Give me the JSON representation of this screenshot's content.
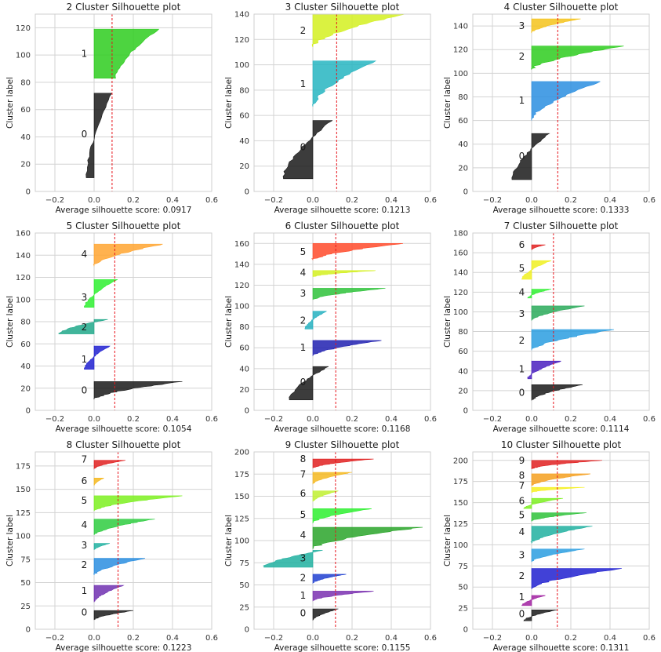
{
  "chart_data": [
    {
      "type": "area",
      "title": "2 Cluster Silhouette plot",
      "xlabel": "Average silhouette score: 0.0917",
      "ylabel": "Cluster label",
      "xlim": [
        -0.3,
        0.6
      ],
      "ylim": [
        0,
        130
      ],
      "xticks": [
        "−0.2",
        "0.0",
        "0.2",
        "0.4",
        "0.6"
      ],
      "xtick_values": [
        -0.2,
        0.0,
        0.2,
        0.4,
        0.6
      ],
      "yticks": [
        "0",
        "20",
        "40",
        "60",
        "80",
        "100",
        "120"
      ],
      "ytick_values": [
        0,
        20,
        40,
        60,
        80,
        100,
        120
      ],
      "avg_score": 0.0917,
      "grid": true,
      "clusters": [
        {
          "label": "0",
          "ystart": 10,
          "yend": 72,
          "min": -0.04,
          "max": 0.09,
          "label_y": 42,
          "color": "#1a1a1a"
        },
        {
          "label": "1",
          "ystart": 83,
          "yend": 119,
          "min": 0.11,
          "max": 0.33,
          "label_y": 101,
          "color": "#2ecc1f"
        }
      ]
    },
    {
      "type": "area",
      "title": "3 Cluster Silhouette plot",
      "xlabel": "Average silhouette score: 0.1213",
      "ylabel": "Cluster label",
      "xlim": [
        -0.3,
        0.6
      ],
      "ylim": [
        0,
        140
      ],
      "xticks": [
        "−0.2",
        "0.0",
        "0.2",
        "0.4",
        "0.6"
      ],
      "xtick_values": [
        -0.2,
        0.0,
        0.2,
        0.4,
        0.6
      ],
      "yticks": [
        "0",
        "20",
        "40",
        "60",
        "80",
        "100",
        "120",
        "140"
      ],
      "ytick_values": [
        0,
        20,
        40,
        60,
        80,
        100,
        120,
        140
      ],
      "avg_score": 0.1213,
      "grid": true,
      "clusters": [
        {
          "label": "0",
          "ystart": 10,
          "yend": 56,
          "min": -0.15,
          "max": 0.1,
          "label_y": 35,
          "color": "#1a1a1a"
        },
        {
          "label": "1",
          "ystart": 67,
          "yend": 103,
          "min": 0.0,
          "max": 0.32,
          "label_y": 85,
          "color": "#26b5c1"
        },
        {
          "label": "2",
          "ystart": 114,
          "yend": 140,
          "min": 0.0,
          "max": 0.47,
          "label_y": 127,
          "color": "#d4f020"
        }
      ]
    },
    {
      "type": "area",
      "title": "4 Cluster Silhouette plot",
      "xlabel": "Average silhouette score: 0.1333",
      "ylabel": "Cluster label",
      "xlim": [
        -0.3,
        0.6
      ],
      "ylim": [
        0,
        150
      ],
      "xticks": [
        "−0.2",
        "0.0",
        "0.2",
        "0.4",
        "0.6"
      ],
      "xtick_values": [
        -0.2,
        0.0,
        0.2,
        0.4,
        0.6
      ],
      "yticks": [
        "0",
        "20",
        "40",
        "60",
        "80",
        "100",
        "120",
        "140"
      ],
      "ytick_values": [
        0,
        20,
        40,
        60,
        80,
        100,
        120,
        140
      ],
      "avg_score": 0.1333,
      "grid": true,
      "clusters": [
        {
          "label": "0",
          "ystart": 10,
          "yend": 49,
          "min": -0.1,
          "max": 0.09,
          "label_y": 30,
          "color": "#1a1a1a"
        },
        {
          "label": "1",
          "ystart": 60,
          "yend": 93,
          "min": 0.0,
          "max": 0.35,
          "label_y": 77,
          "color": "#2a8ee0"
        },
        {
          "label": "2",
          "ystart": 103,
          "yend": 123,
          "min": 0.0,
          "max": 0.47,
          "label_y": 114,
          "color": "#2ecc1f"
        },
        {
          "label": "3",
          "ystart": 134,
          "yend": 146,
          "min": 0.0,
          "max": 0.25,
          "label_y": 140,
          "color": "#f5c31b"
        }
      ]
    },
    {
      "type": "area",
      "title": "5 Cluster Silhouette plot",
      "xlabel": "Average silhouette score: 0.1054",
      "ylabel": "Cluster label",
      "xlim": [
        -0.3,
        0.6
      ],
      "ylim": [
        0,
        160
      ],
      "xticks": [
        "−0.2",
        "0.0",
        "0.2",
        "0.4",
        "0.6"
      ],
      "xtick_values": [
        -0.2,
        0.0,
        0.2,
        0.4,
        0.6
      ],
      "yticks": [
        "0",
        "20",
        "40",
        "60",
        "80",
        "100",
        "120",
        "140",
        "160"
      ],
      "ytick_values": [
        0,
        20,
        40,
        60,
        80,
        100,
        120,
        140,
        160
      ],
      "avg_score": 0.1054,
      "grid": true,
      "clusters": [
        {
          "label": "0",
          "ystart": 10,
          "yend": 26,
          "min": 0.0,
          "max": 0.45,
          "label_y": 18,
          "color": "#1a1a1a"
        },
        {
          "label": "1",
          "ystart": 37,
          "yend": 58,
          "min": -0.05,
          "max": 0.08,
          "label_y": 46,
          "color": "#2020d0"
        },
        {
          "label": "2",
          "ystart": 69,
          "yend": 82,
          "min": -0.18,
          "max": 0.07,
          "label_y": 75,
          "color": "#20a88a"
        },
        {
          "label": "3",
          "ystart": 93,
          "yend": 118,
          "min": -0.05,
          "max": 0.12,
          "label_y": 102,
          "color": "#2ef030"
        },
        {
          "label": "4",
          "ystart": 130,
          "yend": 150,
          "min": 0.0,
          "max": 0.35,
          "label_y": 141,
          "color": "#ffa530"
        }
      ]
    },
    {
      "type": "area",
      "title": "6 Cluster Silhouette plot",
      "xlabel": "Average silhouette score: 0.1168",
      "ylabel": "Cluster label",
      "xlim": [
        -0.3,
        0.6
      ],
      "ylim": [
        0,
        170
      ],
      "xticks": [
        "−0.2",
        "0.0",
        "0.2",
        "0.4",
        "0.6"
      ],
      "xtick_values": [
        -0.2,
        0.0,
        0.2,
        0.4,
        0.6
      ],
      "yticks": [
        "0",
        "20",
        "40",
        "60",
        "80",
        "100",
        "120",
        "140",
        "160"
      ],
      "ytick_values": [
        0,
        20,
        40,
        60,
        80,
        100,
        120,
        140,
        160
      ],
      "avg_score": 0.1168,
      "grid": true,
      "clusters": [
        {
          "label": "0",
          "ystart": 10,
          "yend": 42,
          "min": -0.12,
          "max": 0.08,
          "label_y": 27,
          "color": "#1a1a1a"
        },
        {
          "label": "1",
          "ystart": 52,
          "yend": 67,
          "min": 0.0,
          "max": 0.35,
          "label_y": 60,
          "color": "#2020b0"
        },
        {
          "label": "2",
          "ystart": 78,
          "yend": 95,
          "min": -0.04,
          "max": 0.07,
          "label_y": 86,
          "color": "#25b0c0"
        },
        {
          "label": "3",
          "ystart": 106,
          "yend": 117,
          "min": 0.0,
          "max": 0.37,
          "label_y": 112,
          "color": "#2ec23a"
        },
        {
          "label": "4",
          "ystart": 128,
          "yend": 134,
          "min": 0.0,
          "max": 0.32,
          "label_y": 132,
          "color": "#d4f020"
        },
        {
          "label": "5",
          "ystart": 144,
          "yend": 160,
          "min": 0.0,
          "max": 0.46,
          "label_y": 152,
          "color": "#ff4a2a"
        }
      ]
    },
    {
      "type": "area",
      "title": "7 Cluster Silhouette plot",
      "xlabel": "Average silhouette score: 0.1114",
      "ylabel": "Cluster label",
      "xlim": [
        -0.3,
        0.6
      ],
      "ylim": [
        0,
        180
      ],
      "xticks": [
        "−0.2",
        "0.0",
        "0.2",
        "0.4",
        "0.6"
      ],
      "xtick_values": [
        -0.2,
        0.0,
        0.2,
        0.4,
        0.6
      ],
      "yticks": [
        "0",
        "20",
        "40",
        "60",
        "80",
        "100",
        "120",
        "140",
        "160",
        "180"
      ],
      "ytick_values": [
        0,
        20,
        40,
        60,
        80,
        100,
        120,
        140,
        160,
        180
      ],
      "avg_score": 0.1114,
      "grid": true,
      "clusters": [
        {
          "label": "0",
          "ystart": 10,
          "yend": 26,
          "min": 0.0,
          "max": 0.26,
          "label_y": 18,
          "color": "#1a1a1a"
        },
        {
          "label": "1",
          "ystart": 32,
          "yend": 50,
          "min": -0.02,
          "max": 0.15,
          "label_y": 42,
          "color": "#4a20c0"
        },
        {
          "label": "2",
          "ystart": 61,
          "yend": 82,
          "min": 0.0,
          "max": 0.42,
          "label_y": 71,
          "color": "#2a9ee0"
        },
        {
          "label": "3",
          "ystart": 91,
          "yend": 106,
          "min": 0.0,
          "max": 0.27,
          "label_y": 98,
          "color": "#2aaa5a"
        },
        {
          "label": "4",
          "ystart": 114,
          "yend": 123,
          "min": -0.02,
          "max": 0.1,
          "label_y": 120,
          "color": "#2ef030"
        },
        {
          "label": "5",
          "ystart": 133,
          "yend": 152,
          "min": -0.05,
          "max": 0.1,
          "label_y": 144,
          "color": "#f0f020"
        },
        {
          "label": "6",
          "ystart": 163,
          "yend": 168,
          "min": 0.0,
          "max": 0.07,
          "label_y": 168,
          "color": "#e02020"
        }
      ]
    },
    {
      "type": "area",
      "title": "8 Cluster Silhouette plot",
      "xlabel": "Average silhouette score: 0.1223",
      "ylabel": "Cluster label",
      "xlim": [
        -0.3,
        0.6
      ],
      "ylim": [
        0,
        190
      ],
      "xticks": [
        "−0.2",
        "0.0",
        "0.2",
        "0.4",
        "0.6"
      ],
      "xtick_values": [
        -0.2,
        0.0,
        0.2,
        0.4,
        0.6
      ],
      "yticks": [
        "0",
        "25",
        "50",
        "75",
        "100",
        "125",
        "150",
        "175"
      ],
      "ytick_values": [
        0,
        25,
        50,
        75,
        100,
        125,
        150,
        175
      ],
      "avg_score": 0.1223,
      "grid": true,
      "clusters": [
        {
          "label": "0",
          "ystart": 10,
          "yend": 20,
          "min": 0.0,
          "max": 0.2,
          "label_y": 18,
          "color": "#1a1a1a"
        },
        {
          "label": "1",
          "ystart": 29,
          "yend": 47,
          "min": 0.0,
          "max": 0.15,
          "label_y": 41,
          "color": "#7030b0"
        },
        {
          "label": "2",
          "ystart": 58,
          "yend": 76,
          "min": 0.0,
          "max": 0.26,
          "label_y": 69,
          "color": "#2a8ee0"
        },
        {
          "label": "3",
          "ystart": 85,
          "yend": 92,
          "min": 0.0,
          "max": 0.08,
          "label_y": 90,
          "color": "#20b0a0"
        },
        {
          "label": "4",
          "ystart": 101,
          "yend": 118,
          "min": 0.0,
          "max": 0.31,
          "label_y": 112,
          "color": "#2ecc40"
        },
        {
          "label": "5",
          "ystart": 127,
          "yend": 143,
          "min": 0.0,
          "max": 0.45,
          "label_y": 138,
          "color": "#7cf020"
        },
        {
          "label": "6",
          "ystart": 154,
          "yend": 162,
          "min": 0.0,
          "max": 0.05,
          "label_y": 159,
          "color": "#f5b820"
        },
        {
          "label": "7",
          "ystart": 172,
          "yend": 181,
          "min": 0.0,
          "max": 0.16,
          "label_y": 182,
          "color": "#e02020"
        }
      ]
    },
    {
      "type": "area",
      "title": "9 Cluster Silhouette plot",
      "xlabel": "Average silhouette score: 0.1155",
      "ylabel": "Cluster label",
      "xlim": [
        -0.3,
        0.6
      ],
      "ylim": [
        0,
        200
      ],
      "xticks": [
        "−0.2",
        "0.0",
        "0.2",
        "0.4",
        "0.6"
      ],
      "xtick_values": [
        -0.2,
        0.0,
        0.2,
        0.4,
        0.6
      ],
      "yticks": [
        "0",
        "25",
        "50",
        "75",
        "100",
        "125",
        "150",
        "175",
        "200"
      ],
      "ytick_values": [
        0,
        25,
        50,
        75,
        100,
        125,
        150,
        175,
        200
      ],
      "avg_score": 0.1155,
      "grid": true,
      "clusters": [
        {
          "label": "0",
          "ystart": 10,
          "yend": 23,
          "min": 0.0,
          "max": 0.13,
          "label_y": 18,
          "color": "#1a1a1a"
        },
        {
          "label": "1",
          "ystart": 32,
          "yend": 43,
          "min": 0.0,
          "max": 0.31,
          "label_y": 38,
          "color": "#7a30b0"
        },
        {
          "label": "2",
          "ystart": 52,
          "yend": 62,
          "min": 0.0,
          "max": 0.17,
          "label_y": 58,
          "color": "#2040d0"
        },
        {
          "label": "3",
          "ystart": 70,
          "yend": 89,
          "min": -0.25,
          "max": 0.05,
          "label_y": 80,
          "color": "#20b0a0"
        },
        {
          "label": "4",
          "ystart": 91,
          "yend": 115,
          "min": 0.0,
          "max": 0.56,
          "label_y": 106,
          "color": "#2aa52a"
        },
        {
          "label": "5",
          "ystart": 120,
          "yend": 136,
          "min": 0.0,
          "max": 0.3,
          "label_y": 129,
          "color": "#2ef030"
        },
        {
          "label": "6",
          "ystart": 144,
          "yend": 156,
          "min": 0.0,
          "max": 0.13,
          "label_y": 153,
          "color": "#c0f030"
        },
        {
          "label": "7",
          "ystart": 164,
          "yend": 177,
          "min": 0.0,
          "max": 0.2,
          "label_y": 175,
          "color": "#f5b820"
        },
        {
          "label": "8",
          "ystart": 182,
          "yend": 192,
          "min": 0.0,
          "max": 0.31,
          "label_y": 192,
          "color": "#e02020"
        }
      ]
    },
    {
      "type": "area",
      "title": "10 Cluster Silhouette plot",
      "xlabel": "Average silhouette score: 0.1311",
      "ylabel": "Cluster label",
      "xlim": [
        -0.3,
        0.6
      ],
      "ylim": [
        0,
        210
      ],
      "xticks": [
        "−0.2",
        "0.0",
        "0.2",
        "0.4",
        "0.6"
      ],
      "xtick_values": [
        -0.2,
        0.0,
        0.2,
        0.4,
        0.6
      ],
      "yticks": [
        "0",
        "25",
        "50",
        "75",
        "100",
        "125",
        "150",
        "175",
        "200"
      ],
      "ytick_values": [
        0,
        25,
        50,
        75,
        100,
        125,
        150,
        175,
        200
      ],
      "avg_score": 0.1311,
      "grid": true,
      "clusters": [
        {
          "label": "0",
          "ystart": 10,
          "yend": 23,
          "min": -0.04,
          "max": 0.13,
          "label_y": 18,
          "color": "#1a1a1a"
        },
        {
          "label": "1",
          "ystart": 28,
          "yend": 40,
          "min": -0.05,
          "max": 0.07,
          "label_y": 38,
          "color": "#a020a0"
        },
        {
          "label": "2",
          "ystart": 48,
          "yend": 72,
          "min": 0.0,
          "max": 0.46,
          "label_y": 63,
          "color": "#2020d0"
        },
        {
          "label": "3",
          "ystart": 80,
          "yend": 95,
          "min": 0.0,
          "max": 0.27,
          "label_y": 88,
          "color": "#2a9ee0"
        },
        {
          "label": "4",
          "ystart": 102,
          "yend": 122,
          "min": 0.0,
          "max": 0.31,
          "label_y": 115,
          "color": "#20b0a0"
        },
        {
          "label": "5",
          "ystart": 128,
          "yend": 138,
          "min": 0.0,
          "max": 0.28,
          "label_y": 135,
          "color": "#2ec23a"
        },
        {
          "label": "6",
          "ystart": 143,
          "yend": 155,
          "min": -0.04,
          "max": 0.16,
          "label_y": 152,
          "color": "#7cf020"
        },
        {
          "label": "7",
          "ystart": 162,
          "yend": 168,
          "min": 0.0,
          "max": 0.27,
          "label_y": 170,
          "color": "#f5f020"
        },
        {
          "label": "8",
          "ystart": 170,
          "yend": 184,
          "min": 0.0,
          "max": 0.3,
          "label_y": 182,
          "color": "#f5a020"
        },
        {
          "label": "9",
          "ystart": 190,
          "yend": 200,
          "min": 0.0,
          "max": 0.36,
          "label_y": 200,
          "color": "#e02020"
        }
      ]
    }
  ]
}
